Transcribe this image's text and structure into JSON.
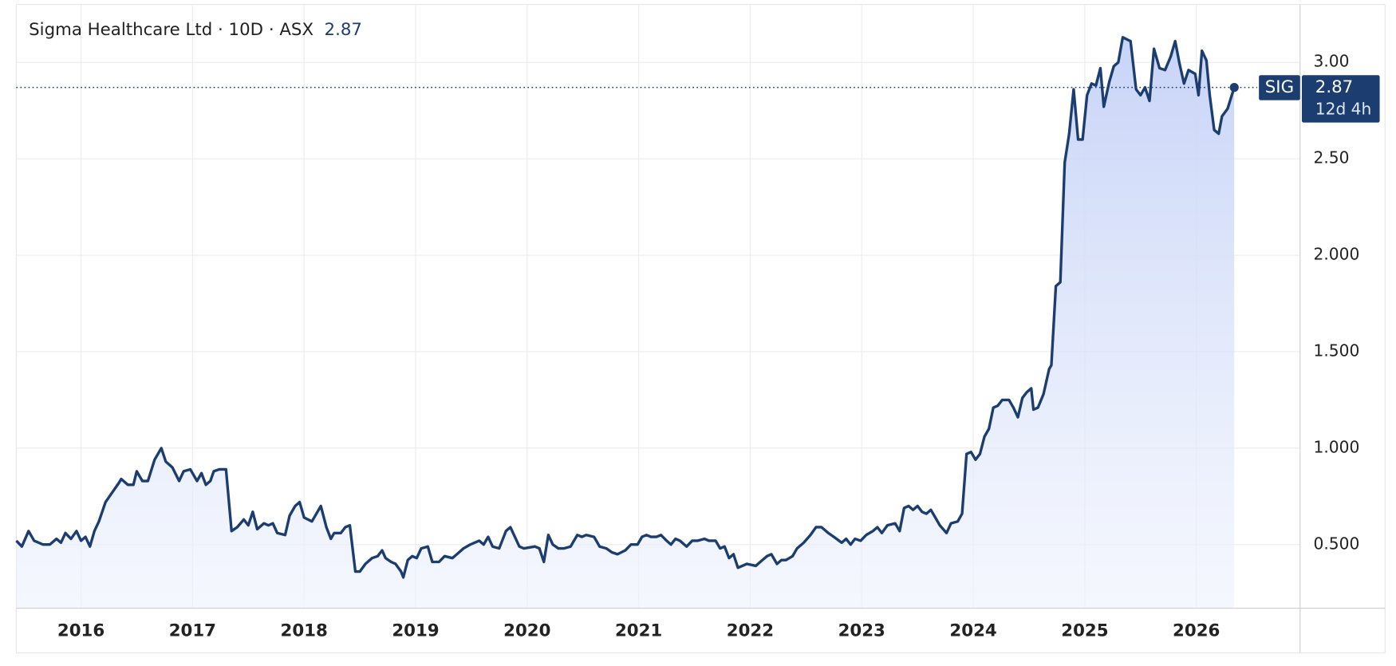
{
  "chart_data": {
    "type": "line",
    "title": "Sigma Healthcare Ltd · 10D · ASX",
    "last_price": 2.87,
    "symbol": "SIG",
    "countdown": "12d 4h",
    "color": "#1b3d6f",
    "grid": true,
    "xlim": [
      2015.42,
      2026.93
    ],
    "xticks": [
      2016,
      2017,
      2018,
      2019,
      2020,
      2021,
      2022,
      2023,
      2024,
      2025,
      2026
    ],
    "ylim": [
      0.17,
      3.3
    ],
    "yticks": [
      {
        "value": 0.5,
        "label": "0.500"
      },
      {
        "value": 1,
        "label": "1.000"
      },
      {
        "value": 1.5,
        "label": "1.500"
      },
      {
        "value": 2,
        "label": "2.000"
      },
      {
        "value": 2.5,
        "label": "2.50"
      },
      {
        "value": 3,
        "label": "3.00"
      }
    ],
    "x": [
      2015.42,
      2015.47,
      2015.53,
      2015.58,
      2015.66,
      2015.72,
      2015.78,
      2015.82,
      2015.86,
      2015.91,
      2015.96,
      2016.0,
      2016.04,
      2016.08,
      2016.12,
      2016.16,
      2016.22,
      2016.28,
      2016.34,
      2016.36,
      2016.42,
      2016.47,
      2016.5,
      2016.55,
      2016.6,
      2016.66,
      2016.72,
      2016.76,
      2016.82,
      2016.88,
      2016.92,
      2016.98,
      2017.04,
      2017.08,
      2017.12,
      2017.16,
      2017.19,
      2017.24,
      2017.3,
      2017.35,
      2017.4,
      2017.46,
      2017.5,
      2017.54,
      2017.58,
      2017.64,
      2017.68,
      2017.72,
      2017.76,
      2017.83,
      2017.87,
      2017.92,
      2017.96,
      2018.0,
      2018.07,
      2018.15,
      2018.2,
      2018.24,
      2018.27,
      2018.33,
      2018.37,
      2018.41,
      2018.46,
      2018.5,
      2018.55,
      2018.61,
      2018.66,
      2018.7,
      2018.73,
      2018.78,
      2018.82,
      2018.87,
      2018.89,
      2018.93,
      2018.97,
      2019.01,
      2019.05,
      2019.11,
      2019.15,
      2019.21,
      2019.26,
      2019.33,
      2019.37,
      2019.43,
      2019.49,
      2019.57,
      2019.61,
      2019.65,
      2019.69,
      2019.75,
      2019.81,
      2019.85,
      2019.89,
      2019.93,
      2019.97,
      2020.07,
      2020.11,
      2020.15,
      2020.19,
      2020.23,
      2020.28,
      2020.33,
      2020.39,
      2020.45,
      2020.49,
      2020.53,
      2020.6,
      2020.65,
      2020.71,
      2020.76,
      2020.81,
      2020.88,
      2020.93,
      2020.99,
      2021.03,
      2021.07,
      2021.11,
      2021.16,
      2021.2,
      2021.25,
      2021.29,
      2021.33,
      2021.37,
      2021.43,
      2021.48,
      2021.53,
      2021.59,
      2021.63,
      2021.69,
      2021.73,
      2021.77,
      2021.81,
      2021.85,
      2021.89,
      2021.93,
      2021.97,
      2022.05,
      2022.09,
      2022.15,
      2022.19,
      2022.24,
      2022.28,
      2022.32,
      2022.38,
      2022.42,
      2022.48,
      2022.54,
      2022.59,
      2022.64,
      2022.7,
      2022.75,
      2022.82,
      2022.86,
      2022.9,
      2022.94,
      2022.99,
      2023.04,
      2023.1,
      2023.14,
      2023.18,
      2023.23,
      2023.3,
      2023.34,
      2023.38,
      2023.42,
      2023.46,
      2023.5,
      2023.54,
      2023.58,
      2023.62,
      2023.66,
      2023.7,
      2023.76,
      2023.8,
      2023.86,
      2023.9,
      2023.94,
      2023.98,
      2024.02,
      2024.06,
      2024.1,
      2024.14,
      2024.18,
      2024.22,
      2024.26,
      2024.32,
      2024.36,
      2024.4,
      2024.44,
      2024.48,
      2024.52,
      2024.54,
      2024.58,
      2024.63,
      2024.68,
      2024.7,
      2024.74,
      2024.78,
      2024.82,
      2024.86,
      2024.9,
      2024.94,
      2024.98,
      2025.02,
      2025.06,
      2025.1,
      2025.14,
      2025.17,
      2025.22,
      2025.26,
      2025.3,
      2025.34,
      2025.41,
      2025.46,
      2025.5,
      2025.54,
      2025.58,
      2025.62,
      2025.67,
      2025.72,
      2025.77,
      2025.81,
      2025.85,
      2025.89,
      2025.93,
      2025.99,
      2026.02,
      2026.05,
      2026.09,
      2026.12,
      2026.16,
      2026.2,
      2026.23,
      2026.28,
      2026.34
    ],
    "values": [
      0.52,
      0.49,
      0.57,
      0.52,
      0.5,
      0.5,
      0.53,
      0.51,
      0.56,
      0.53,
      0.57,
      0.52,
      0.54,
      0.49,
      0.57,
      0.62,
      0.72,
      0.77,
      0.82,
      0.84,
      0.81,
      0.81,
      0.88,
      0.83,
      0.83,
      0.94,
      1.0,
      0.93,
      0.9,
      0.83,
      0.88,
      0.89,
      0.83,
      0.87,
      0.81,
      0.83,
      0.88,
      0.89,
      0.89,
      0.57,
      0.59,
      0.63,
      0.6,
      0.67,
      0.58,
      0.61,
      0.6,
      0.61,
      0.56,
      0.55,
      0.65,
      0.7,
      0.72,
      0.64,
      0.62,
      0.7,
      0.59,
      0.53,
      0.56,
      0.56,
      0.59,
      0.6,
      0.36,
      0.36,
      0.4,
      0.43,
      0.44,
      0.47,
      0.43,
      0.41,
      0.4,
      0.36,
      0.33,
      0.42,
      0.44,
      0.43,
      0.48,
      0.49,
      0.41,
      0.41,
      0.44,
      0.43,
      0.45,
      0.48,
      0.5,
      0.52,
      0.5,
      0.54,
      0.49,
      0.48,
      0.57,
      0.59,
      0.54,
      0.49,
      0.48,
      0.49,
      0.48,
      0.41,
      0.55,
      0.5,
      0.48,
      0.48,
      0.49,
      0.55,
      0.54,
      0.55,
      0.54,
      0.49,
      0.48,
      0.46,
      0.45,
      0.47,
      0.5,
      0.5,
      0.54,
      0.55,
      0.54,
      0.54,
      0.55,
      0.52,
      0.5,
      0.53,
      0.52,
      0.49,
      0.52,
      0.52,
      0.53,
      0.52,
      0.52,
      0.48,
      0.49,
      0.43,
      0.45,
      0.38,
      0.39,
      0.4,
      0.39,
      0.41,
      0.44,
      0.45,
      0.4,
      0.42,
      0.42,
      0.44,
      0.48,
      0.51,
      0.55,
      0.59,
      0.59,
      0.56,
      0.54,
      0.51,
      0.53,
      0.5,
      0.53,
      0.52,
      0.55,
      0.57,
      0.59,
      0.56,
      0.6,
      0.61,
      0.57,
      0.69,
      0.7,
      0.68,
      0.7,
      0.67,
      0.66,
      0.68,
      0.64,
      0.6,
      0.56,
      0.61,
      0.62,
      0.66,
      0.97,
      0.98,
      0.94,
      0.97,
      1.06,
      1.1,
      1.21,
      1.22,
      1.25,
      1.25,
      1.21,
      1.16,
      1.26,
      1.29,
      1.31,
      1.2,
      1.21,
      1.28,
      1.41,
      1.43,
      1.84,
      1.86,
      2.48,
      2.63,
      2.86,
      2.6,
      2.6,
      2.83,
      2.89,
      2.88,
      2.97,
      2.77,
      2.9,
      2.98,
      3.0,
      3.13,
      3.11,
      2.86,
      2.83,
      2.87,
      2.8,
      3.07,
      2.97,
      2.96,
      3.03,
      3.11,
      2.99,
      2.89,
      2.96,
      2.94,
      2.83,
      3.06,
      3.01,
      2.83,
      2.65,
      2.63,
      2.72,
      2.76,
      2.87
    ]
  }
}
